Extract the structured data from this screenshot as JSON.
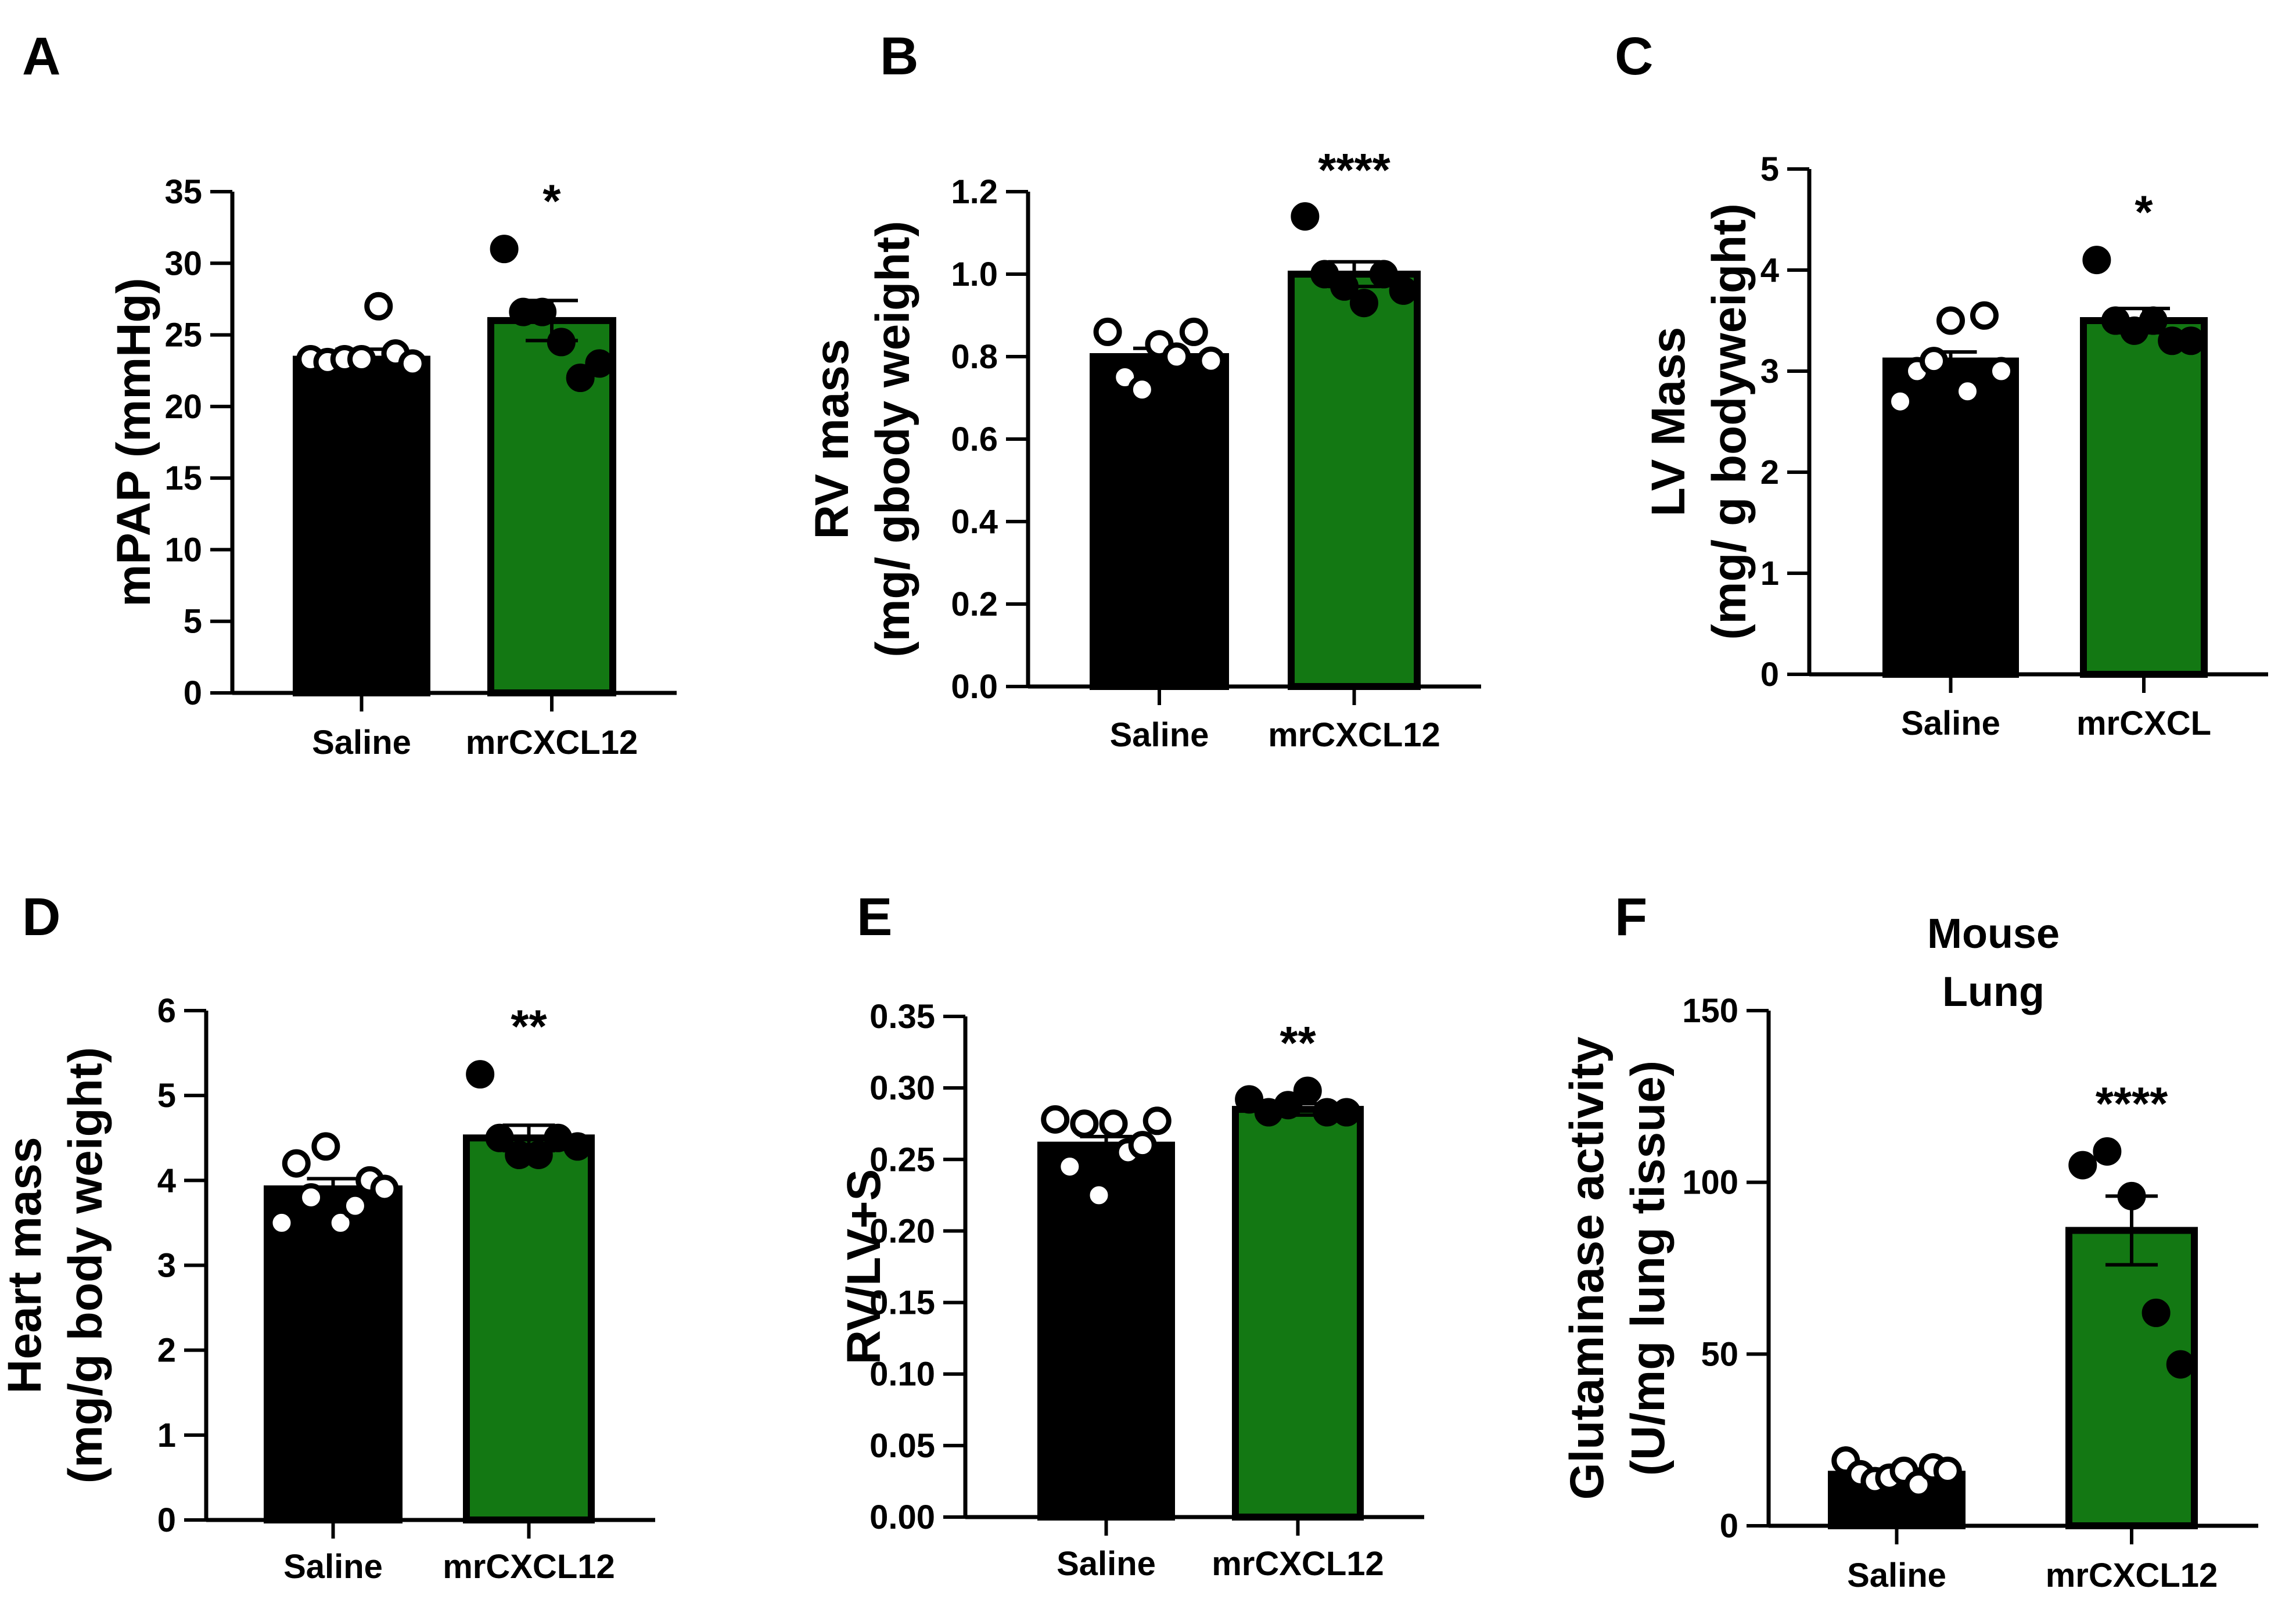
{
  "colors": {
    "saline": "#000000",
    "treatment": "#137813",
    "axis": "#000000",
    "muted_letter": "#9a9a9a"
  },
  "charts": [
    {
      "letter": "A",
      "letter_color": "#000000",
      "title_lines": [],
      "ylabel_lines": [
        "mPAP (mmHg)"
      ],
      "categories": [
        "Saline",
        "mrCXCL12"
      ],
      "significance": "*",
      "chart_data": {
        "type": "bar",
        "categories": [
          "Saline",
          "mrCXCL12"
        ],
        "values": [
          23.3,
          26.0
        ],
        "sem": [
          0.7,
          1.4
        ],
        "points": [
          [
            23.3,
            23.1,
            23.3,
            23.3,
            27.0,
            23.7,
            23.0
          ],
          [
            31.0,
            26.6,
            26.6,
            24.5,
            22.0,
            23.0
          ]
        ],
        "ylim": [
          0,
          35
        ],
        "ticks": [
          0,
          5,
          10,
          15,
          20,
          25,
          30,
          35
        ],
        "tick_decimals": 0,
        "ylabel": "mPAP (mmHg)"
      }
    },
    {
      "letter": "B",
      "letter_color": "#9a9a9a",
      "title_lines": [],
      "ylabel_lines": [
        "RV mass",
        "(mg/ gbody weight)"
      ],
      "categories": [
        "Saline",
        "mrCXCL12"
      ],
      "significance": "****",
      "chart_data": {
        "type": "bar",
        "categories": [
          "Saline",
          "mrCXCL12"
        ],
        "values": [
          0.8,
          1.0
        ],
        "sem": [
          0.02,
          0.03
        ],
        "points": [
          [
            0.86,
            0.75,
            0.72,
            0.83,
            0.8,
            0.86,
            0.79
          ],
          [
            1.14,
            1.0,
            0.97,
            0.93,
            1.0,
            0.96
          ]
        ],
        "ylim": [
          0,
          1.2
        ],
        "ticks": [
          0.0,
          0.2,
          0.4,
          0.6,
          0.8,
          1.0,
          1.2
        ],
        "tick_decimals": 1,
        "ylabel": "RV mass (mg/ gbody weight)"
      }
    },
    {
      "letter": "C",
      "letter_color": "#000000",
      "title_lines": [],
      "ylabel_lines": [
        "LV Mass",
        "(mg/ g bodyweight)"
      ],
      "categories": [
        "Saline",
        "mrCXCL"
      ],
      "significance": "*",
      "chart_data": {
        "type": "bar",
        "categories": [
          "Saline",
          "mrCXCL"
        ],
        "values": [
          3.1,
          3.5
        ],
        "sem": [
          0.09,
          0.12
        ],
        "points": [
          [
            2.7,
            3.0,
            3.1,
            3.5,
            2.8,
            3.55,
            3.0
          ],
          [
            4.1,
            3.5,
            3.4,
            3.5,
            3.3,
            3.3
          ]
        ],
        "ylim": [
          0,
          5
        ],
        "ticks": [
          0,
          1,
          2,
          3,
          4,
          5
        ],
        "tick_decimals": 0,
        "ylabel": "LV Mass (mg/ g bodyweight)"
      }
    },
    {
      "letter": "D",
      "letter_color": "#000000",
      "title_lines": [],
      "ylabel_lines": [
        "Heart mass",
        "(mg/g body weight)"
      ],
      "categories": [
        "Saline",
        "mrCXCL12"
      ],
      "significance": "**",
      "chart_data": {
        "type": "bar",
        "categories": [
          "Saline",
          "mrCXCL12"
        ],
        "values": [
          3.9,
          4.5
        ],
        "sem": [
          0.12,
          0.15
        ],
        "points": [
          [
            3.5,
            4.2,
            3.8,
            4.4,
            3.5,
            3.7,
            4.0,
            3.9
          ],
          [
            5.25,
            4.5,
            4.3,
            4.3,
            4.5,
            4.4
          ]
        ],
        "ylim": [
          0,
          6
        ],
        "ticks": [
          0,
          1,
          2,
          3,
          4,
          5,
          6
        ],
        "tick_decimals": 0,
        "ylabel": "Heart mass (mg/g body weight)"
      }
    },
    {
      "letter": "E",
      "letter_color": "#9a9a9a",
      "title_lines": [],
      "ylabel_lines": [
        "RV/LV+S"
      ],
      "categories": [
        "Saline",
        "mrCXCL12"
      ],
      "significance": "**",
      "chart_data": {
        "type": "bar",
        "categories": [
          "Saline",
          "mrCXCL12"
        ],
        "values": [
          0.26,
          0.285
        ],
        "sem": [
          0.006,
          0.004
        ],
        "points": [
          [
            0.278,
            0.245,
            0.275,
            0.225,
            0.275,
            0.255,
            0.26,
            0.277
          ],
          [
            0.292,
            0.283,
            0.288,
            0.298,
            0.283,
            0.283
          ]
        ],
        "ylim": [
          0,
          0.35
        ],
        "ticks": [
          0.0,
          0.05,
          0.1,
          0.15,
          0.2,
          0.25,
          0.3,
          0.35
        ],
        "tick_decimals": 2,
        "ylabel": "RV/LV+S"
      }
    },
    {
      "letter": "F",
      "letter_color": "#000000",
      "title_lines": [
        "Mouse",
        "Lung"
      ],
      "ylabel_lines": [
        "Glutaminase activity",
        "(U/mg lung tissue)"
      ],
      "categories": [
        "Saline",
        "mrCXCL12"
      ],
      "significance": "****",
      "chart_data": {
        "type": "bar",
        "categories": [
          "Saline",
          "mrCXCL12"
        ],
        "values": [
          15,
          86
        ],
        "sem": [
          1.5,
          10
        ],
        "points": [
          [
            19,
            15,
            13,
            14,
            16,
            12,
            17,
            16
          ],
          [
            105,
            109,
            96,
            62,
            47
          ]
        ],
        "ylim": [
          0,
          150
        ],
        "ticks": [
          0,
          50,
          100,
          150
        ],
        "tick_decimals": 0,
        "ylabel": "Glutaminase activity (U/mg lung tissue)"
      }
    }
  ]
}
